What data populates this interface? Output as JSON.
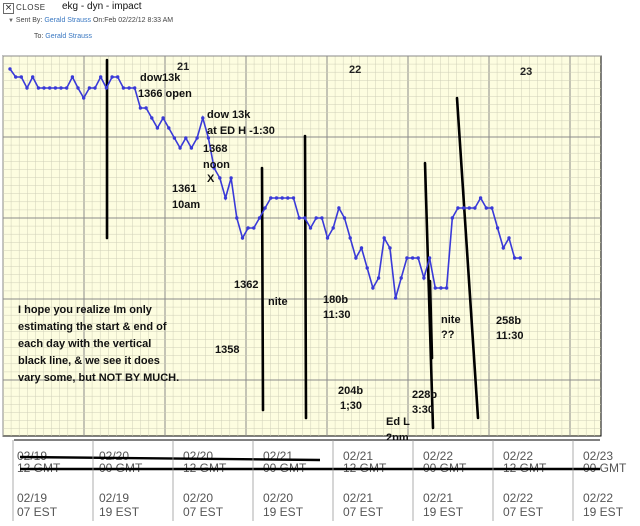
{
  "header": {
    "close_icon": "x-icon",
    "close_label": "CLOSE",
    "subject": "ekg - dyn - impact",
    "sent_by_label": "Sent By:",
    "sender": "Gerald Strauss",
    "sent_on": "On:Feb 02/22/12 8:33 AM",
    "to_label": "To:",
    "recipient": "Gerald Strauss"
  },
  "chart_data": {
    "type": "line",
    "colors": {
      "line": "#3a3ad8",
      "background": "#fdfde0",
      "grid": "#bfbfbf",
      "markers": "#000000"
    },
    "day_labels": [
      "21",
      "22",
      "23"
    ],
    "series": [
      {
        "values": [
          93,
          85,
          85,
          74,
          85,
          74,
          74,
          74,
          74,
          74,
          74,
          85,
          74,
          64,
          74,
          74,
          85,
          74,
          85,
          85,
          74,
          74,
          74,
          54,
          54,
          44,
          34,
          44,
          34,
          24,
          14,
          24,
          14,
          24,
          44,
          24,
          -6,
          -16,
          -36,
          -16,
          -56,
          -76,
          -66,
          -66,
          -56,
          -46,
          -36,
          -36,
          -36,
          -36,
          -36,
          -56,
          -56,
          -66,
          -56,
          -56,
          -76,
          -66,
          -46,
          -56,
          -76,
          -96,
          -86,
          -106,
          -126,
          -116,
          -76,
          -86,
          -136,
          -116,
          -96,
          -96,
          -96,
          -116,
          -96,
          -126,
          -126,
          -126,
          -56,
          -46,
          -46,
          -46,
          -46,
          -36,
          -46,
          -46,
          -66,
          -86,
          -76,
          -96,
          -96
        ]
      }
    ],
    "annotations": [
      "dow13k",
      "1366 open",
      "dow 13k",
      "at ED H -1:30",
      "1368",
      "noon",
      "X",
      "1361",
      "10am",
      "1362",
      "nite",
      "1358",
      "180b",
      "11:30",
      "204b",
      "1;30",
      "Ed L",
      "2pm",
      "228b",
      "3:30",
      "nite",
      "??",
      "258b",
      "11:30",
      "I hope you realize Im only",
      "estimating the start & end of",
      "each day with the vertical",
      "black line, & we see it does",
      "vary some, but NOT BY MUCH."
    ],
    "axis_rows": {
      "gmt_dates": [
        "02/19",
        "02/20",
        "02/20",
        "02/21",
        "02/21",
        "02/22",
        "02/22",
        "02/23"
      ],
      "gmt_times": [
        "12 GMT",
        "00 GMT",
        "12 GMT",
        "00 GMT",
        "12 GMT",
        "00 GMT",
        "12 GMT",
        "00 GMT"
      ],
      "est_dates": [
        "02/19",
        "02/19",
        "02/20",
        "02/20",
        "02/21",
        "02/21",
        "02/22",
        "02/22"
      ],
      "est_times": [
        "07 EST",
        "19 EST",
        "07 EST",
        "19 EST",
        "07 EST",
        "19 EST",
        "07 EST",
        "19 EST"
      ]
    }
  }
}
